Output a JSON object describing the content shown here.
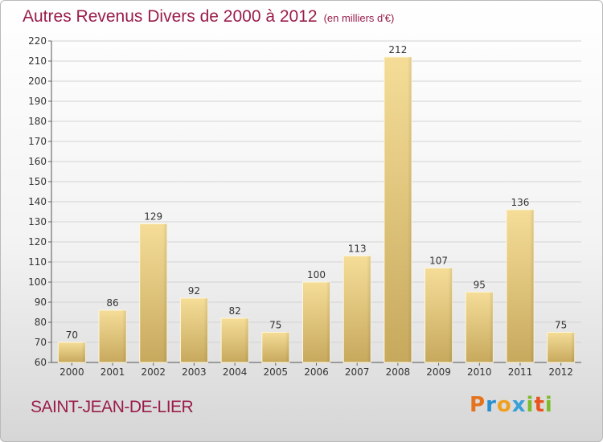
{
  "title": "Autres Revenus Divers de 2000 à 2012",
  "subtitle": "(en milliers d'€)",
  "place": "SAINT-JEAN-DE-LIER",
  "brand": {
    "letters": [
      "P",
      "r",
      "o",
      "x",
      "i",
      "t",
      "i"
    ],
    "colors": [
      "#e4731b",
      "#2a8fd0",
      "#f0a020",
      "#3aa0d8",
      "#7cbc2a",
      "#e9541e",
      "#7cbc2a"
    ]
  },
  "colors": {
    "title": "#9a1d4a",
    "bar_light": "#f5dd98",
    "bar_dark": "#c7a95d",
    "grid": "#d3d3d3"
  },
  "chart_data": {
    "type": "bar",
    "categories": [
      "2000",
      "2001",
      "2002",
      "2003",
      "2004",
      "2005",
      "2006",
      "2007",
      "2008",
      "2009",
      "2010",
      "2011",
      "2012"
    ],
    "values": [
      70,
      86,
      129,
      92,
      82,
      75,
      100,
      113,
      212,
      107,
      95,
      136,
      75
    ],
    "ylim": [
      60,
      220
    ],
    "yticks": [
      60,
      70,
      80,
      90,
      100,
      110,
      120,
      130,
      140,
      150,
      160,
      170,
      180,
      190,
      200,
      210,
      220
    ],
    "grid": true,
    "data_labels": true
  }
}
